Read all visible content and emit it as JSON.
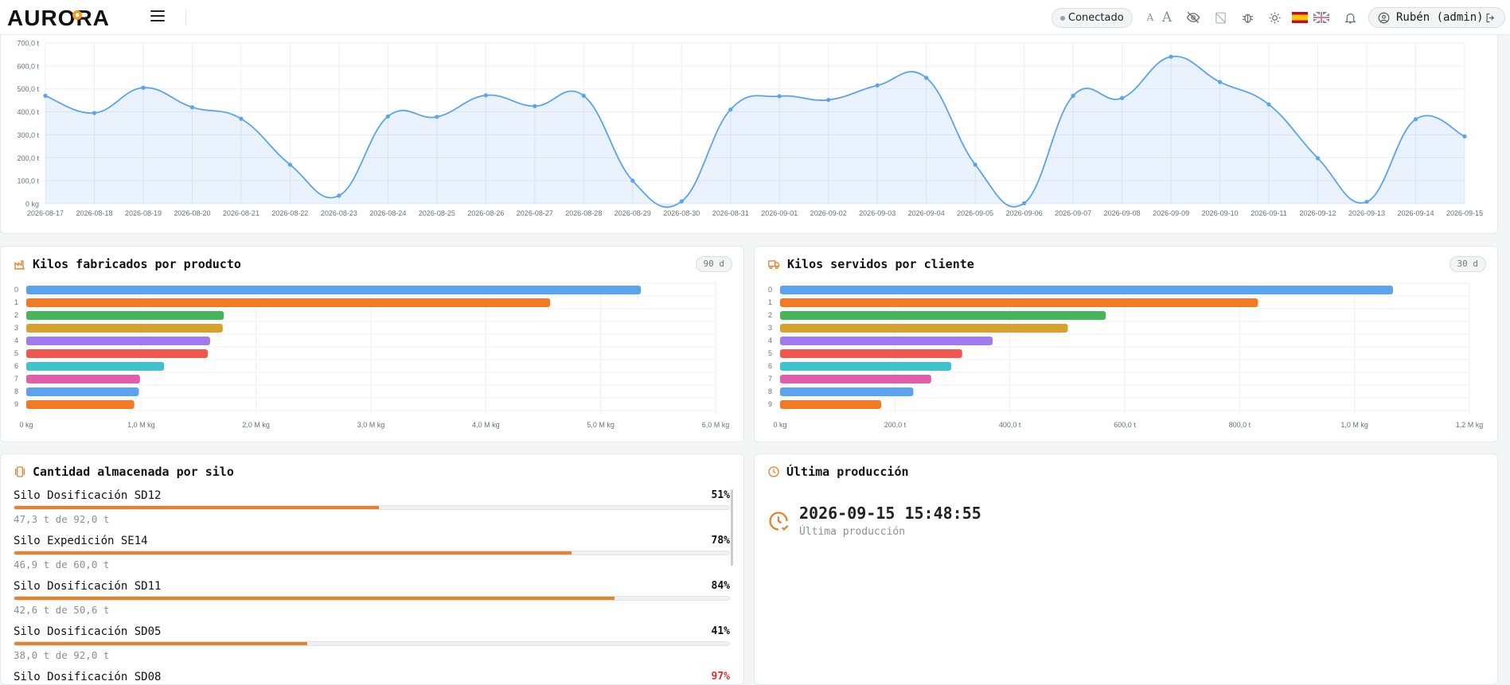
{
  "header": {
    "logo_text": "AURORA",
    "status": "Conectado",
    "font_small": "A",
    "font_large": "A",
    "user": "Rubén (admin)"
  },
  "line_chart": {
    "chart_data": {
      "type": "area",
      "x": [
        "2026-08-17",
        "2026-08-18",
        "2026-08-19",
        "2026-08-20",
        "2026-08-21",
        "2026-08-22",
        "2026-08-23",
        "2026-08-24",
        "2026-08-25",
        "2026-08-26",
        "2026-08-27",
        "2026-08-28",
        "2026-08-29",
        "2026-08-30",
        "2026-08-31",
        "2026-09-01",
        "2026-09-02",
        "2026-09-03",
        "2026-09-04",
        "2026-09-05",
        "2026-09-06",
        "2026-09-07",
        "2026-09-08",
        "2026-09-09",
        "2026-09-10",
        "2026-09-11",
        "2026-09-12",
        "2026-09-13",
        "2026-09-14",
        "2026-09-15"
      ],
      "values": [
        470,
        395,
        505,
        420,
        370,
        170,
        35,
        380,
        378,
        472,
        425,
        470,
        100,
        10,
        410,
        468,
        452,
        515,
        548,
        170,
        2,
        470,
        460,
        640,
        530,
        432,
        198,
        8,
        368,
        293
      ],
      "ylim": [
        0,
        700
      ],
      "yticks": [
        0,
        100,
        200,
        300,
        400,
        500,
        600,
        700
      ],
      "ytick_labels": [
        "0 kg",
        "100,0 t",
        "200,0 t",
        "300,0 t",
        "400,0 t",
        "500,0 t",
        "600,0 t",
        "700,0 t"
      ],
      "grid": true,
      "color": "#5aa3ef"
    }
  },
  "products": {
    "title": "Kilos fabricados por producto",
    "badge": "90 d",
    "chart_data": {
      "type": "bar",
      "orientation": "horizontal",
      "categories": [
        "0",
        "1",
        "2",
        "3",
        "4",
        "5",
        "6",
        "7",
        "8",
        "9"
      ],
      "values": [
        5.35,
        4.56,
        1.72,
        1.71,
        1.6,
        1.58,
        1.2,
        0.99,
        0.98,
        0.94
      ],
      "unit": "M kg",
      "xlim": [
        0,
        6
      ],
      "xticks": [
        0,
        1,
        2,
        3,
        4,
        5,
        6
      ],
      "xtick_labels": [
        "0 kg",
        "1,0 M kg",
        "2,0 M kg",
        "3,0 M kg",
        "4,0 M kg",
        "5,0 M kg",
        "6,0 M kg"
      ],
      "colors": [
        "#5aa3ef",
        "#f47a22",
        "#45b65a",
        "#d8a02d",
        "#a07bf0",
        "#f0584e",
        "#3fc4cd",
        "#e05fa8",
        "#5aa3ef",
        "#f47a22"
      ]
    }
  },
  "clients": {
    "title": "Kilos servidos por cliente",
    "badge": "30 d",
    "chart_data": {
      "type": "bar",
      "orientation": "horizontal",
      "categories": [
        "0",
        "1",
        "2",
        "3",
        "4",
        "5",
        "6",
        "7",
        "8",
        "9"
      ],
      "values": [
        1067,
        832,
        567,
        501,
        370,
        317,
        298,
        263,
        232,
        176
      ],
      "unit": "t",
      "xlim": [
        0,
        1200
      ],
      "xticks": [
        0,
        200,
        400,
        600,
        800,
        1000,
        1200
      ],
      "xtick_labels": [
        "0 kg",
        "200,0 t",
        "400,0 t",
        "600,0 t",
        "800,0 t",
        "1,0 M kg",
        "1,2 M kg"
      ],
      "colors": [
        "#5aa3ef",
        "#f47a22",
        "#45b65a",
        "#d8a02d",
        "#a07bf0",
        "#f0584e",
        "#3fc4cd",
        "#e05fa8",
        "#5aa3ef",
        "#f47a22"
      ]
    }
  },
  "silos": {
    "title": "Cantidad almacenada por silo",
    "items": [
      {
        "name": "Silo Dosificación SD12",
        "pct_label": "51%",
        "pct": 51,
        "sub": "47,3 t de 92,0 t",
        "color": "#111111"
      },
      {
        "name": "Silo Expedición SE14",
        "pct_label": "78%",
        "pct": 78,
        "sub": "46,9 t de 60,0 t",
        "color": "#111111"
      },
      {
        "name": "Silo Dosificación SD11",
        "pct_label": "84%",
        "pct": 84,
        "sub": "42,6 t de 50,6 t",
        "color": "#111111"
      },
      {
        "name": "Silo Dosificación SD05",
        "pct_label": "41%",
        "pct": 41,
        "sub": "38,0 t de 92,0 t",
        "color": "#111111"
      },
      {
        "name": "Silo Dosificación SD08",
        "pct_label": "97%",
        "pct": 97,
        "sub": "",
        "color": "#d0342c"
      }
    ]
  },
  "last_production": {
    "title": "Última producción",
    "value": "2026-09-15 15:48:55",
    "subtitle": "Última producción"
  },
  "colors": {
    "accent": "#e4822f",
    "line": "#5aa3ef"
  }
}
